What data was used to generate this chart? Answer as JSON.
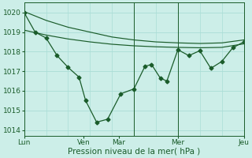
{
  "bg_color": "#cceee8",
  "grid_color": "#aaddd6",
  "line_color": "#1a5c2a",
  "marker_color": "#1a5c2a",
  "xlabel": "Pression niveau de la mer( hPa )",
  "yticks": [
    1014,
    1015,
    1016,
    1017,
    1018,
    1019,
    1020
  ],
  "ylim": [
    1013.7,
    1020.5
  ],
  "xlim": [
    0,
    100
  ],
  "smooth_line1_x": [
    0,
    10,
    20,
    30,
    40,
    50,
    60,
    70,
    80,
    90,
    100
  ],
  "smooth_line1_y": [
    1020.05,
    1019.6,
    1019.25,
    1019.0,
    1018.75,
    1018.6,
    1018.5,
    1018.45,
    1018.42,
    1018.45,
    1018.6
  ],
  "smooth_line2_x": [
    0,
    10,
    20,
    30,
    40,
    50,
    60,
    70,
    80,
    90,
    100
  ],
  "smooth_line2_y": [
    1019.1,
    1018.85,
    1018.65,
    1018.5,
    1018.38,
    1018.3,
    1018.25,
    1018.22,
    1018.2,
    1018.22,
    1018.4
  ],
  "main_x": [
    0,
    5,
    10,
    15,
    20,
    25,
    28,
    33,
    38,
    44,
    50,
    55,
    58,
    62,
    65,
    70,
    75,
    80,
    85,
    90,
    95,
    100
  ],
  "main_y": [
    1020.0,
    1019.0,
    1018.7,
    1017.8,
    1017.2,
    1016.7,
    1015.5,
    1014.4,
    1014.55,
    1015.85,
    1016.1,
    1017.25,
    1017.35,
    1016.65,
    1016.5,
    1018.1,
    1017.8,
    1018.05,
    1017.15,
    1017.5,
    1018.2,
    1018.5
  ],
  "vlines_x": [
    27,
    50,
    70,
    100
  ],
  "xtick_positions": [
    0,
    27,
    50,
    70,
    100
  ],
  "xtick_labels": [
    "Lun",
    "Ven  Mar",
    "",
    "Mer",
    "Jeu"
  ],
  "xlabel_fontsize": 7.5,
  "tick_fontsize": 6.5
}
